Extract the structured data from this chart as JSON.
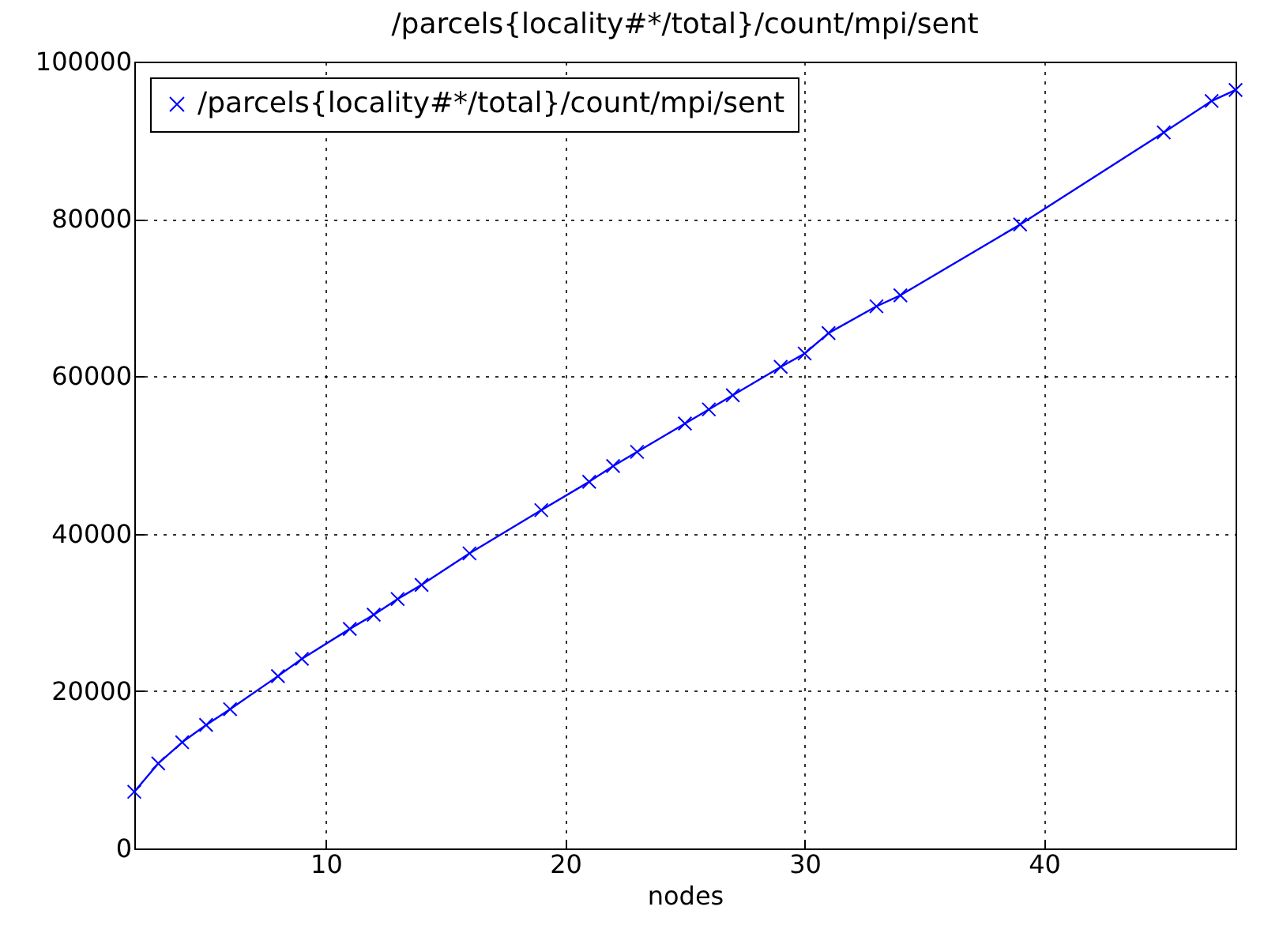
{
  "chart_data": {
    "type": "line",
    "title": "/parcels{locality#*/total}/count/mpi/sent",
    "xlabel": "nodes",
    "x": [
      2,
      3,
      4,
      5,
      6,
      8,
      9,
      11,
      12,
      13,
      14,
      16,
      19,
      21,
      22,
      23,
      25,
      26,
      27,
      29,
      30,
      31,
      33,
      34,
      39,
      45,
      47,
      48
    ],
    "series": [
      {
        "name": "/parcels{locality#*/total}/count/mpi/sent",
        "color": "#0000ff",
        "values": [
          7200,
          10800,
          13500,
          15700,
          17700,
          21900,
          24100,
          27900,
          29700,
          31700,
          33500,
          37500,
          43000,
          46600,
          48600,
          50400,
          54000,
          55800,
          57600,
          61200,
          62900,
          65500,
          68900,
          70300,
          79300,
          91000,
          95000,
          96400
        ]
      }
    ],
    "xlim": [
      2,
      48
    ],
    "xticks": [
      10,
      20,
      30,
      40
    ],
    "ylim": [
      0,
      100000
    ],
    "yticks": [
      0,
      20000,
      40000,
      60000,
      80000,
      100000
    ],
    "grid": true,
    "legend": "top left",
    "marker": "cross",
    "line_style": "solid"
  }
}
